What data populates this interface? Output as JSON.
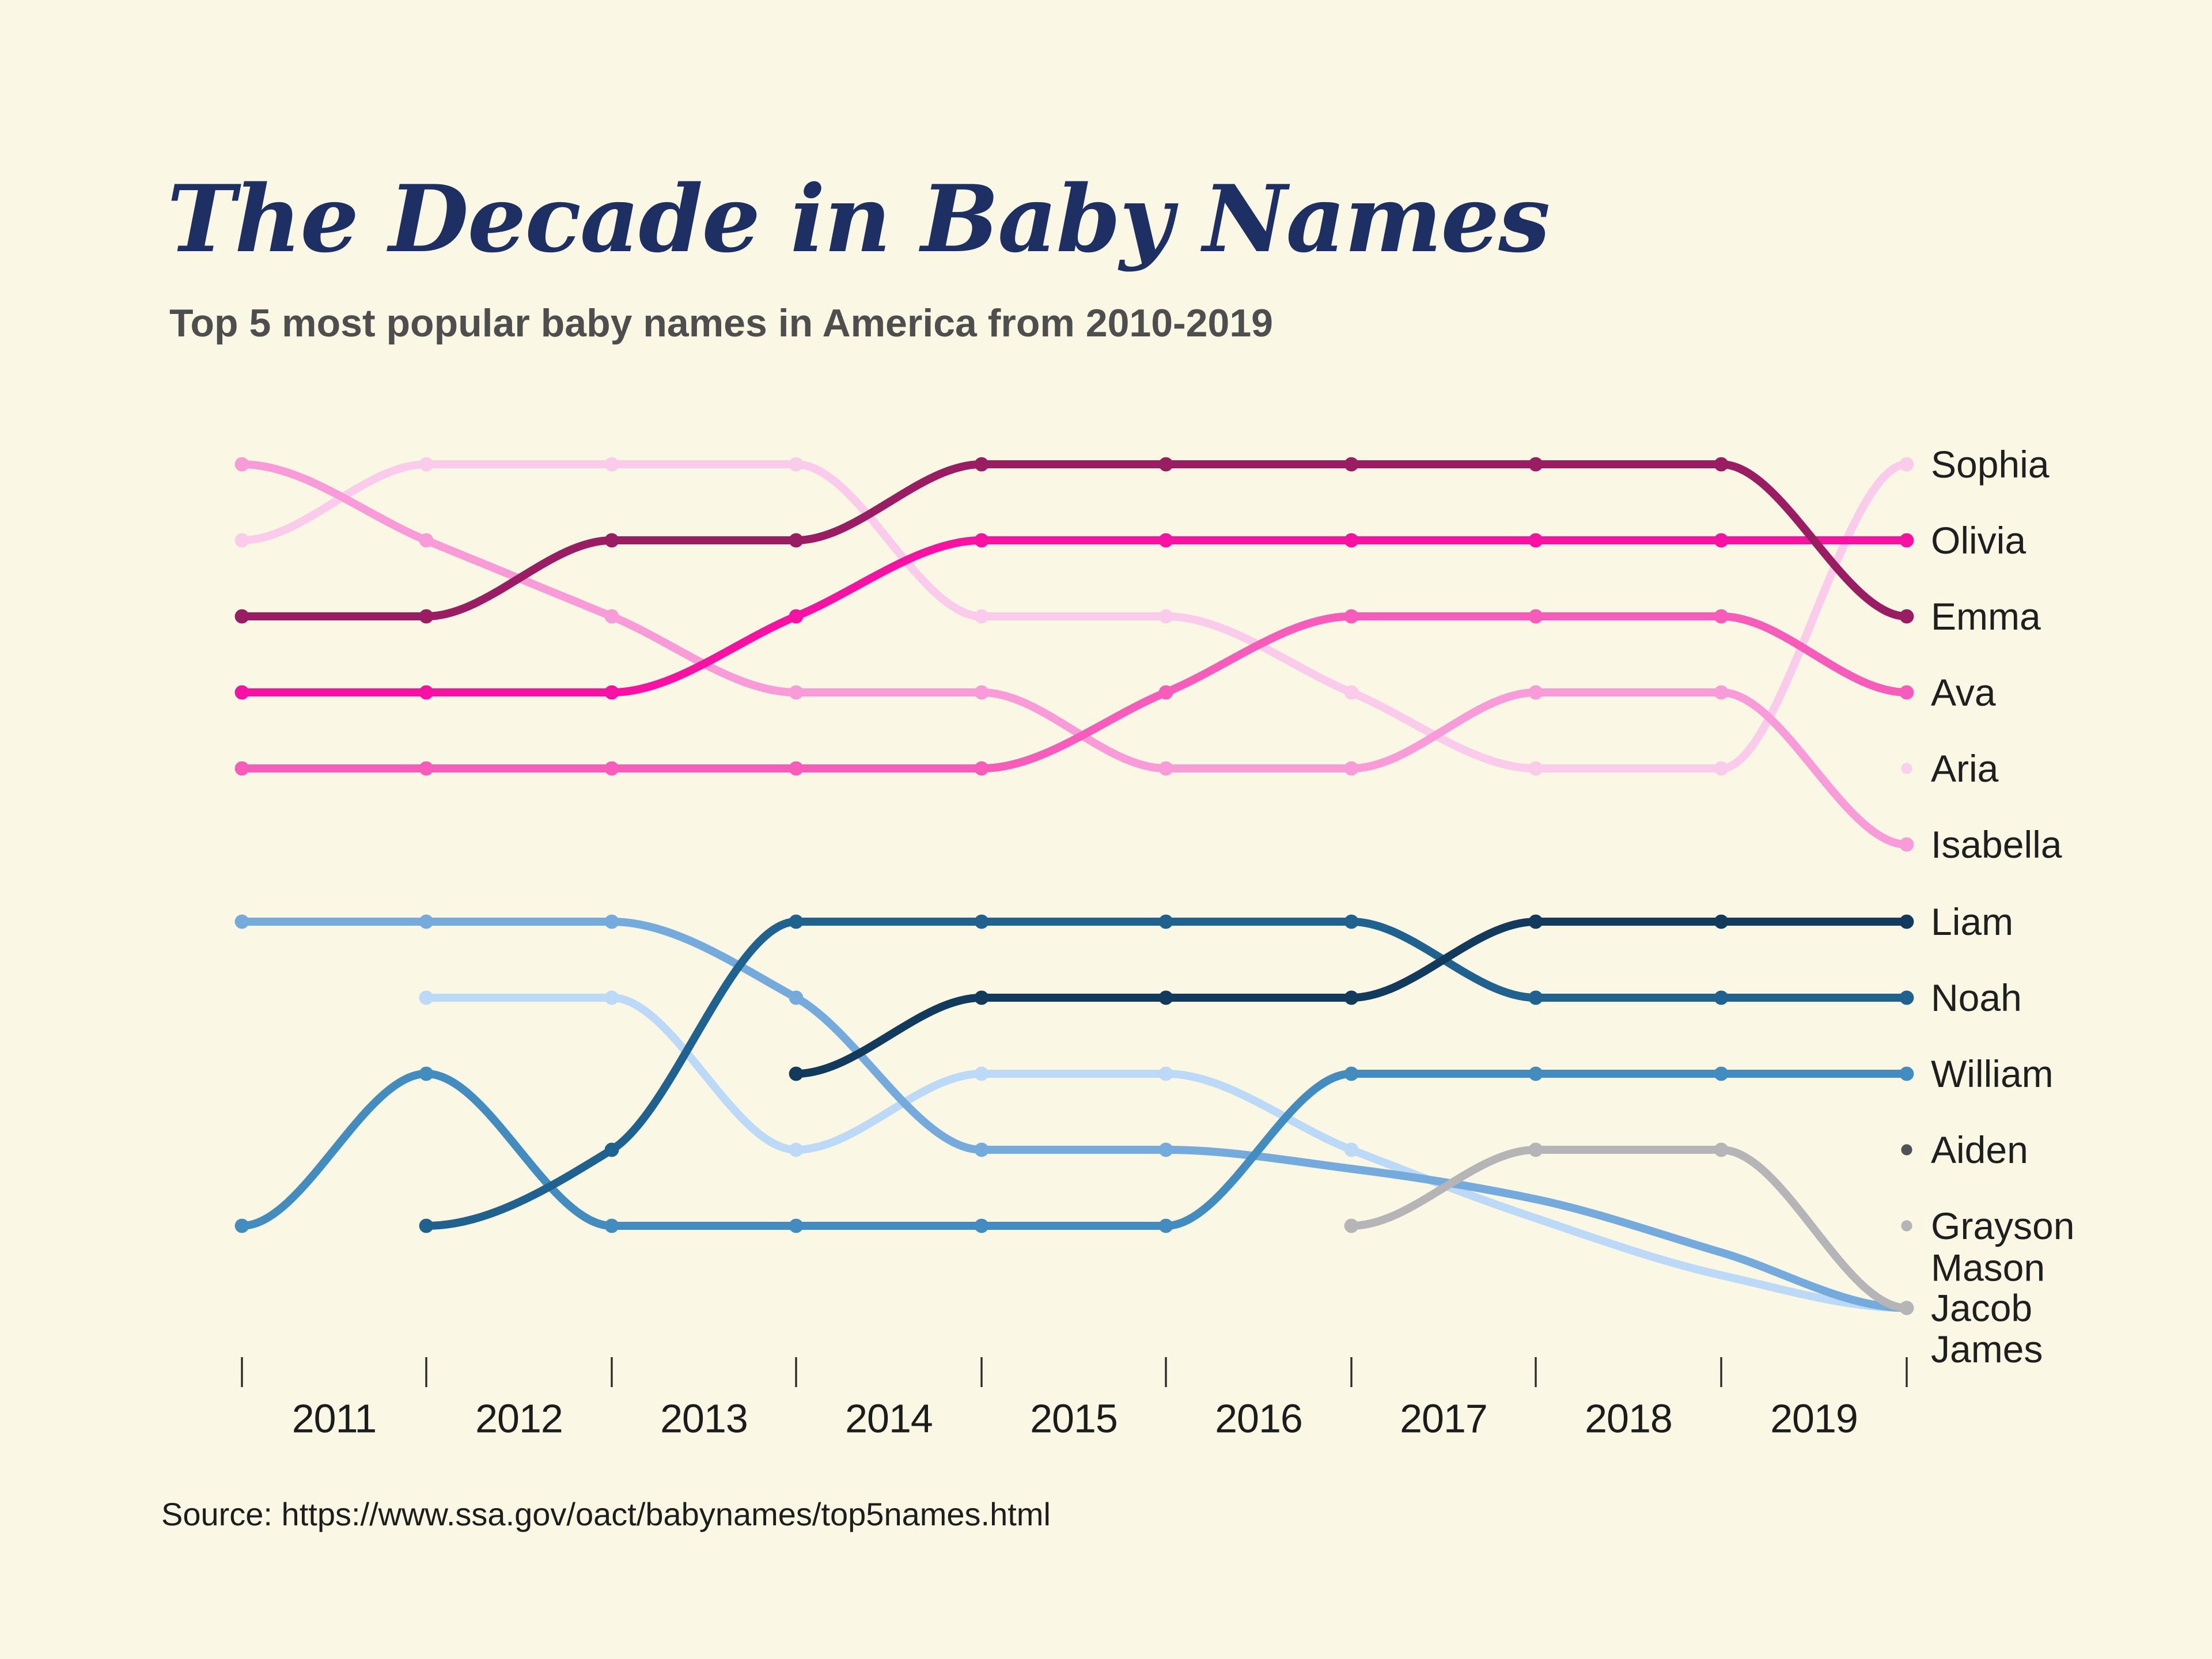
{
  "page": {
    "background": "#FAF8E4"
  },
  "header": {
    "title": "The Decade in Baby Names",
    "title_color": "#1E2F63",
    "subtitle": "Top 5 most popular baby names in America from 2010-2019",
    "subtitle_color": "#4E4E4E"
  },
  "footer": {
    "source": "Source: https://www.ssa.gov/oact/babynames/top5names.html",
    "source_color": "#1D1D1D"
  },
  "axis": {
    "tick_color": "#2B2B2B",
    "label_color": "#1C1C1C",
    "interval_labels": [
      "2011",
      "2012",
      "2013",
      "2014",
      "2015",
      "2016",
      "2017",
      "2018",
      "2019"
    ]
  },
  "chart_data": {
    "type": "line",
    "subtype": "bump-ranking",
    "title": "Top 5 most popular baby names in America from 2010-2019",
    "years": [
      2010,
      2011,
      2012,
      2013,
      2014,
      2015,
      2016,
      2017,
      2018,
      2019
    ],
    "rank_scale_note": "1 = most popular, 5 = fifth; 6 / 6.08 = dropped out of top 5; fractional tail values trace fade-out lines as drawn",
    "legend_position": "right",
    "grid": false,
    "series": [
      {
        "name": "Sophia",
        "band": "girls",
        "color": "#FACBEB",
        "ranks": [
          2,
          1,
          1,
          1,
          3,
          3,
          4,
          5,
          5,
          1
        ],
        "tail": []
      },
      {
        "name": "Isabella",
        "band": "girls",
        "color": "#F99BD8",
        "ranks": [
          1,
          2,
          3,
          4,
          4,
          5,
          5,
          4,
          4,
          6
        ],
        "tail": [],
        "end_dot": true
      },
      {
        "name": "Ava",
        "band": "girls",
        "color": "#F75CBB",
        "ranks": [
          5,
          5,
          5,
          5,
          5,
          4,
          3,
          3,
          3,
          4
        ],
        "tail": []
      },
      {
        "name": "Olivia",
        "band": "girls",
        "color": "#F911A4",
        "ranks": [
          4,
          4,
          4,
          3,
          2,
          2,
          2,
          2,
          2,
          2
        ],
        "tail": []
      },
      {
        "name": "Emma",
        "band": "girls",
        "color": "#9A1D64",
        "ranks": [
          3,
          3,
          2,
          2,
          1,
          1,
          1,
          1,
          1,
          3
        ],
        "tail": []
      },
      {
        "name": "Mason",
        "band": "boys",
        "color": "#BCDAF7",
        "ranks": [
          null,
          2,
          2,
          4,
          3,
          3,
          4,
          null,
          null,
          null
        ],
        "tail": [
          {
            "year_index": 7,
            "row": 4.9
          },
          {
            "year_index": 8,
            "row": 5.65
          },
          {
            "year_index": 9,
            "row": 6.08
          }
        ]
      },
      {
        "name": "Jacob",
        "band": "boys",
        "color": "#74AADC",
        "ranks": [
          1,
          1,
          1,
          2,
          4,
          4,
          null,
          null,
          null,
          null
        ],
        "tail": [
          {
            "year_index": 6,
            "row": 4.25
          },
          {
            "year_index": 7,
            "row": 4.65
          },
          {
            "year_index": 8,
            "row": 5.35
          },
          {
            "year_index": 9,
            "row": 6.08
          }
        ]
      },
      {
        "name": "Grayson",
        "band": "boys",
        "color": "#B5B4B6",
        "ranks": [
          null,
          null,
          null,
          null,
          null,
          null,
          5,
          4,
          4,
          null
        ],
        "tail": [
          {
            "year_index": 9,
            "row": 6.08
          }
        ],
        "end_dot": true
      },
      {
        "name": "William",
        "band": "boys",
        "color": "#428CC0",
        "ranks": [
          5,
          3,
          5,
          5,
          5,
          5,
          3,
          3,
          3,
          3
        ],
        "tail": []
      },
      {
        "name": "Noah",
        "band": "boys",
        "color": "#20628F",
        "ranks": [
          null,
          5,
          4,
          1,
          1,
          1,
          1,
          2,
          2,
          2
        ],
        "tail": []
      },
      {
        "name": "Liam",
        "band": "boys",
        "color": "#123A5C",
        "ranks": [
          null,
          null,
          null,
          3,
          2,
          2,
          2,
          1,
          1,
          1
        ],
        "tail": []
      }
    ],
    "legend_labels": [
      {
        "text": "Sophia",
        "band": "girls",
        "row": 1,
        "marker": "line-end"
      },
      {
        "text": "Olivia",
        "band": "girls",
        "row": 2,
        "marker": "line-end"
      },
      {
        "text": "Emma",
        "band": "girls",
        "row": 3,
        "marker": "line-end"
      },
      {
        "text": "Ava",
        "band": "girls",
        "row": 4,
        "marker": "line-end"
      },
      {
        "text": "Aria",
        "band": "girls",
        "row": 5,
        "marker": "dot",
        "marker_color": "#FAD0EE"
      },
      {
        "text": "Isabella",
        "band": "girls",
        "row": 6,
        "marker": "line-end"
      },
      {
        "text": "Liam",
        "band": "boys",
        "row": 1,
        "marker": "line-end"
      },
      {
        "text": "Noah",
        "band": "boys",
        "row": 2,
        "marker": "line-end"
      },
      {
        "text": "William",
        "band": "boys",
        "row": 3,
        "marker": "line-end"
      },
      {
        "text": "Aiden",
        "band": "boys",
        "row": 4,
        "marker": "dot",
        "marker_color": "#515254"
      },
      {
        "text": "Grayson",
        "band": "boys",
        "row": 5,
        "marker": "dot",
        "marker_color": "#B5B4B6"
      },
      {
        "text": "Mason",
        "band": "boys",
        "row": 5.55,
        "marker": "none"
      },
      {
        "text": "Jacob",
        "band": "boys",
        "row": 6.08,
        "marker": "none"
      },
      {
        "text": "James",
        "band": "boys",
        "row": 6.62,
        "marker": "none"
      }
    ]
  }
}
